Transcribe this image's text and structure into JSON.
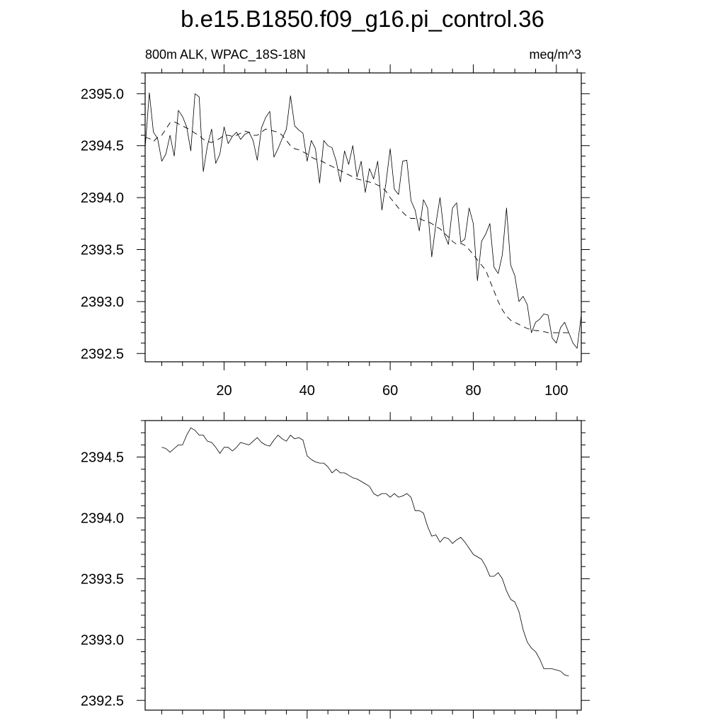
{
  "title": "b.e15.B1850.f09_g16.pi_control.36",
  "chart_data": [
    {
      "type": "line",
      "left_label": "800m ALK, WPAC_18S-18N",
      "right_label": "meq/m^3",
      "xlim": [
        1,
        106
      ],
      "ylim": [
        2392.42,
        2395.2
      ],
      "x_ticks": [
        20,
        40,
        60,
        80,
        100
      ],
      "x_tick_labels": [
        "20",
        "40",
        "60",
        "80",
        "100"
      ],
      "y_ticks": [
        2392.5,
        2393.0,
        2393.5,
        2394.0,
        2394.5,
        2395.0
      ],
      "y_tick_labels": [
        "2392.5",
        "2393.0",
        "2393.5",
        "2394.0",
        "2394.5",
        "2395.0"
      ],
      "series": [
        {
          "style": "solid",
          "x": [
            1,
            2,
            3,
            4,
            5,
            6,
            7,
            8,
            9,
            10,
            11,
            12,
            13,
            14,
            15,
            16,
            17,
            18,
            19,
            20,
            21,
            22,
            23,
            24,
            25,
            26,
            27,
            28,
            29,
            30,
            31,
            32,
            33,
            34,
            35,
            36,
            37,
            38,
            39,
            40,
            41,
            42,
            43,
            44,
            45,
            46,
            47,
            48,
            49,
            50,
            51,
            52,
            53,
            54,
            55,
            56,
            57,
            58,
            59,
            60,
            61,
            62,
            63,
            64,
            65,
            66,
            67,
            68,
            69,
            70,
            71,
            72,
            73,
            74,
            75,
            76,
            77,
            78,
            79,
            80,
            81,
            82,
            83,
            84,
            85,
            86,
            87,
            88,
            89,
            90,
            91,
            92,
            93,
            94,
            95,
            96,
            97,
            98,
            99,
            100,
            101,
            102,
            103,
            104,
            105,
            106
          ],
          "y": [
            2394.48,
            2395.01,
            2394.63,
            2394.57,
            2394.35,
            2394.42,
            2394.6,
            2394.4,
            2394.84,
            2394.78,
            2394.68,
            2394.45,
            2395.0,
            2394.97,
            2394.25,
            2394.5,
            2394.66,
            2394.33,
            2394.42,
            2394.68,
            2394.52,
            2394.59,
            2394.63,
            2394.56,
            2394.61,
            2394.63,
            2394.55,
            2394.36,
            2394.67,
            2394.77,
            2394.83,
            2394.39,
            2394.47,
            2394.57,
            2394.66,
            2394.98,
            2394.69,
            2394.65,
            2394.62,
            2394.35,
            2394.55,
            2394.47,
            2394.14,
            2394.55,
            2394.5,
            2394.48,
            2394.35,
            2394.15,
            2394.45,
            2394.32,
            2394.5,
            2394.2,
            2394.35,
            2394.05,
            2394.28,
            2394.18,
            2394.35,
            2393.88,
            2394.15,
            2394.47,
            2394.08,
            2394.03,
            2394.35,
            2394.36,
            2393.97,
            2393.88,
            2393.68,
            2393.98,
            2393.9,
            2393.43,
            2393.75,
            2394.0,
            2393.65,
            2393.55,
            2393.9,
            2393.95,
            2393.57,
            2393.6,
            2393.9,
            2393.75,
            2393.2,
            2393.58,
            2393.65,
            2393.75,
            2393.33,
            2393.27,
            2393.45,
            2393.9,
            2393.35,
            2393.25,
            2393.0,
            2393.05,
            2392.97,
            2392.7,
            2392.8,
            2392.83,
            2392.88,
            2392.87,
            2392.65,
            2392.6,
            2392.75,
            2392.8,
            2392.7,
            2392.6,
            2392.55,
            2392.87
          ]
        },
        {
          "style": "dashed",
          "x": [
            1,
            2,
            3,
            4,
            5,
            6,
            7,
            8,
            9,
            10,
            11,
            12,
            13,
            14,
            15,
            16,
            17,
            18,
            19,
            20,
            21,
            22,
            23,
            24,
            25,
            26,
            27,
            28,
            29,
            30,
            31,
            32,
            33,
            34,
            35,
            36,
            37,
            38,
            39,
            40,
            41,
            42,
            43,
            44,
            45,
            46,
            47,
            48,
            49,
            50,
            51,
            52,
            53,
            54,
            55,
            56,
            57,
            58,
            59,
            60,
            61,
            62,
            63,
            64,
            65,
            66,
            67,
            68,
            69,
            70,
            71,
            72,
            73,
            74,
            75,
            76,
            77,
            78,
            79,
            80,
            81,
            82,
            83,
            84,
            85,
            86,
            87,
            88,
            89,
            90,
            91,
            92,
            93,
            94,
            95,
            96,
            97,
            98,
            99,
            100,
            101,
            102,
            103,
            104
          ],
          "y": [
            2394.58,
            2394.57,
            2394.54,
            2394.58,
            2394.6,
            2394.66,
            2394.72,
            2394.73,
            2394.71,
            2394.69,
            2394.67,
            2394.65,
            2394.62,
            2394.6,
            2394.56,
            2394.54,
            2394.53,
            2394.55,
            2394.57,
            2394.6,
            2394.6,
            2394.59,
            2394.6,
            2394.62,
            2394.64,
            2394.63,
            2394.6,
            2394.6,
            2394.63,
            2394.66,
            2394.65,
            2394.64,
            2394.63,
            2394.6,
            2394.55,
            2394.5,
            2394.47,
            2394.46,
            2394.44,
            2394.42,
            2394.39,
            2394.37,
            2394.36,
            2394.34,
            2394.32,
            2394.3,
            2394.28,
            2394.26,
            2394.24,
            2394.22,
            2394.2,
            2394.18,
            2394.17,
            2394.16,
            2394.15,
            2394.14,
            2394.12,
            2394.1,
            2394.06,
            2394.0,
            2393.95,
            2393.9,
            2393.86,
            2393.82,
            2393.8,
            2393.8,
            2393.8,
            2393.78,
            2393.77,
            2393.75,
            2393.72,
            2393.7,
            2393.66,
            2393.62,
            2393.58,
            2393.55,
            2393.56,
            2393.54,
            2393.5,
            2393.45,
            2393.4,
            2393.35,
            2393.3,
            2393.2,
            2393.1,
            2393.0,
            2392.92,
            2392.86,
            2392.82,
            2392.8,
            2392.78,
            2392.76,
            2392.74,
            2392.73,
            2392.72,
            2392.72,
            2392.71,
            2392.7,
            2392.7,
            2392.7,
            2392.7,
            2392.7,
            2392.7,
            2392.7
          ]
        }
      ]
    },
    {
      "type": "line",
      "xlim": [
        1,
        106
      ],
      "ylim": [
        2392.42,
        2394.8
      ],
      "y_ticks": [
        2392.5,
        2393.0,
        2393.5,
        2394.0,
        2394.5
      ],
      "y_tick_labels": [
        "2392.5",
        "2393.0",
        "2393.5",
        "2394.0",
        "2394.5"
      ],
      "series": [
        {
          "style": "solid",
          "x": [
            5,
            6,
            7,
            8,
            9,
            10,
            11,
            12,
            13,
            14,
            15,
            16,
            17,
            18,
            19,
            20,
            21,
            22,
            23,
            24,
            25,
            26,
            27,
            28,
            29,
            30,
            31,
            32,
            33,
            34,
            35,
            36,
            37,
            38,
            39,
            40,
            41,
            42,
            43,
            44,
            45,
            46,
            47,
            48,
            49,
            50,
            51,
            52,
            53,
            54,
            55,
            56,
            57,
            58,
            59,
            60,
            61,
            62,
            63,
            64,
            65,
            66,
            67,
            68,
            69,
            70,
            71,
            72,
            73,
            74,
            75,
            76,
            77,
            78,
            79,
            80,
            81,
            82,
            83,
            84,
            85,
            86,
            87,
            88,
            89,
            90,
            91,
            92,
            93,
            94,
            95,
            96,
            97,
            98,
            99,
            100,
            101,
            102,
            103
          ],
          "y": [
            2394.58,
            2394.57,
            2394.54,
            2394.57,
            2394.6,
            2394.6,
            2394.68,
            2394.74,
            2394.72,
            2394.68,
            2394.68,
            2394.63,
            2394.62,
            2394.58,
            2394.53,
            2394.58,
            2394.58,
            2394.55,
            2394.58,
            2394.62,
            2394.61,
            2394.6,
            2394.63,
            2394.66,
            2394.62,
            2394.6,
            2394.59,
            2394.64,
            2394.68,
            2394.65,
            2394.63,
            2394.68,
            2394.65,
            2394.66,
            2394.64,
            2394.51,
            2394.48,
            2394.46,
            2394.45,
            2394.45,
            2394.42,
            2394.37,
            2394.4,
            2394.37,
            2394.37,
            2394.35,
            2394.33,
            2394.32,
            2394.3,
            2394.28,
            2394.26,
            2394.2,
            2394.18,
            2394.2,
            2394.2,
            2394.17,
            2394.2,
            2394.17,
            2394.18,
            2394.2,
            2394.17,
            2394.06,
            2394.06,
            2394.04,
            2393.93,
            2393.85,
            2393.86,
            2393.8,
            2393.84,
            2393.83,
            2393.79,
            2393.82,
            2393.84,
            2393.8,
            2393.75,
            2393.7,
            2393.68,
            2393.66,
            2393.6,
            2393.52,
            2393.52,
            2393.55,
            2393.5,
            2393.4,
            2393.33,
            2393.31,
            2393.23,
            2393.08,
            2392.98,
            2392.93,
            2392.9,
            2392.84,
            2392.76,
            2392.76,
            2392.76,
            2392.75,
            2392.74,
            2392.71,
            2392.7
          ]
        }
      ]
    }
  ]
}
